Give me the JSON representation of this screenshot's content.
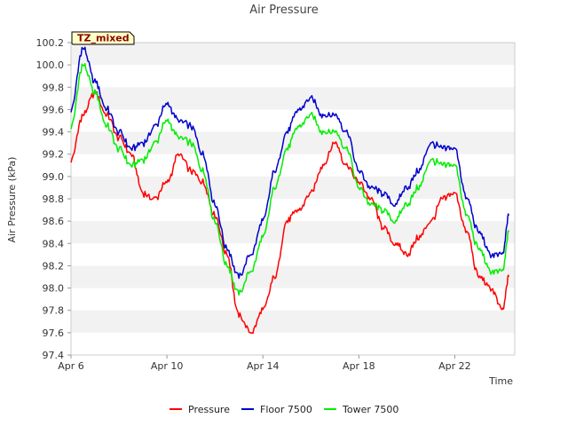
{
  "chart_data": {
    "type": "line",
    "title": "Air Pressure",
    "xlabel": "Time",
    "ylabel": "Air Pressure (kPa)",
    "tz_label": "TZ_mixed",
    "xlim": [
      "2024-04-06",
      "2024-04-24T12:00"
    ],
    "ylim": [
      97.4,
      100.2
    ],
    "x_ticks": [
      {
        "label": "Apr 6",
        "date": "2024-04-06"
      },
      {
        "label": "Apr 10",
        "date": "2024-04-10"
      },
      {
        "label": "Apr 14",
        "date": "2024-04-14"
      },
      {
        "label": "Apr 18",
        "date": "2024-04-18"
      },
      {
        "label": "Apr 22",
        "date": "2024-04-22"
      }
    ],
    "y_ticks": [
      "97.4",
      "97.6",
      "97.8",
      "98.0",
      "98.2",
      "98.4",
      "98.6",
      "98.8",
      "99.0",
      "99.2",
      "99.4",
      "99.6",
      "99.8",
      "100.0",
      "100.2"
    ],
    "grid": "horizontal bands",
    "legend_position": "bottom",
    "x": [
      "2024-04-06T00:00",
      "2024-04-06T12:00",
      "2024-04-07T00:00",
      "2024-04-07T12:00",
      "2024-04-08T00:00",
      "2024-04-08T12:00",
      "2024-04-09T00:00",
      "2024-04-09T12:00",
      "2024-04-10T00:00",
      "2024-04-10T12:00",
      "2024-04-11T00:00",
      "2024-04-11T12:00",
      "2024-04-12T00:00",
      "2024-04-12T12:00",
      "2024-04-13T00:00",
      "2024-04-13T12:00",
      "2024-04-14T00:00",
      "2024-04-14T12:00",
      "2024-04-15T00:00",
      "2024-04-15T12:00",
      "2024-04-16T00:00",
      "2024-04-16T12:00",
      "2024-04-17T00:00",
      "2024-04-17T12:00",
      "2024-04-18T00:00",
      "2024-04-18T12:00",
      "2024-04-19T00:00",
      "2024-04-19T12:00",
      "2024-04-20T00:00",
      "2024-04-20T12:00",
      "2024-04-21T00:00",
      "2024-04-21T12:00",
      "2024-04-22T00:00",
      "2024-04-22T12:00",
      "2024-04-23T00:00",
      "2024-04-23T12:00",
      "2024-04-24T00:00",
      "2024-04-24T06:00"
    ],
    "series": [
      {
        "name": "Pressure",
        "color": "#ff0000",
        "values": [
          99.15,
          99.55,
          99.75,
          99.55,
          99.35,
          99.2,
          98.85,
          98.8,
          98.95,
          99.2,
          99.05,
          98.95,
          98.65,
          98.3,
          97.75,
          97.6,
          97.8,
          98.1,
          98.6,
          98.7,
          98.85,
          99.1,
          99.3,
          99.1,
          98.95,
          98.8,
          98.55,
          98.4,
          98.3,
          98.45,
          98.6,
          98.8,
          98.85,
          98.5,
          98.1,
          98.0,
          97.8,
          98.1
        ]
      },
      {
        "name": "Floor 7500",
        "color": "#0000cd",
        "values": [
          99.6,
          100.15,
          99.85,
          99.6,
          99.4,
          99.25,
          99.3,
          99.45,
          99.65,
          99.5,
          99.45,
          99.2,
          98.75,
          98.35,
          98.1,
          98.3,
          98.6,
          99.05,
          99.4,
          99.6,
          99.7,
          99.55,
          99.55,
          99.4,
          99.05,
          98.9,
          98.85,
          98.75,
          98.9,
          99.05,
          99.3,
          99.25,
          99.25,
          98.8,
          98.5,
          98.3,
          98.3,
          98.65
        ]
      },
      {
        "name": "Tower 7500",
        "color": "#00ee00",
        "values": [
          99.45,
          100.0,
          99.75,
          99.45,
          99.25,
          99.1,
          99.15,
          99.3,
          99.5,
          99.35,
          99.3,
          99.05,
          98.6,
          98.2,
          97.95,
          98.15,
          98.45,
          98.9,
          99.25,
          99.45,
          99.55,
          99.4,
          99.4,
          99.25,
          98.9,
          98.75,
          98.7,
          98.6,
          98.75,
          98.9,
          99.15,
          99.1,
          99.1,
          98.65,
          98.35,
          98.15,
          98.15,
          98.5
        ]
      }
    ]
  }
}
